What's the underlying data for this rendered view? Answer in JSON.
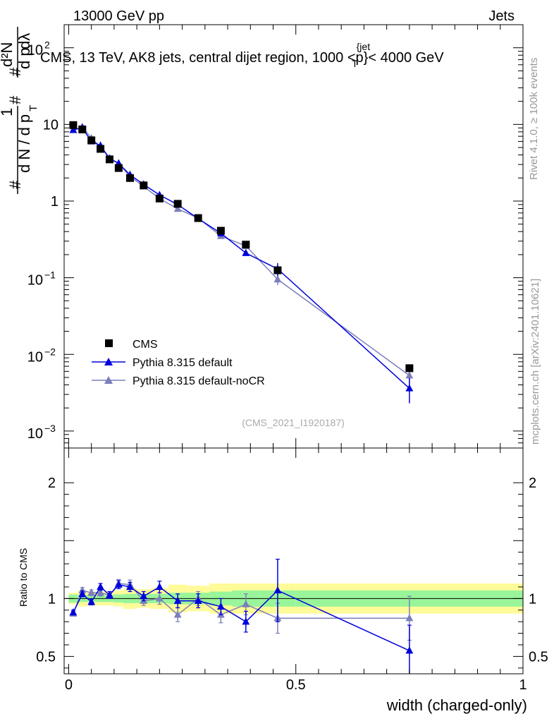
{
  "header": {
    "left": "13000 GeV pp",
    "right": "Jets"
  },
  "side_labels": {
    "rivet": "Rivet 4.1.0, ≥ 100k events",
    "mcplots": "mcplots.cern.ch [arXiv:2401.10621]"
  },
  "chart_data": [
    {
      "type": "scatter",
      "panel": "main",
      "title": "CMS, 13 TeV, AK8 jets, central dijet region, 1000 <p_T^{jet}< 4000 GeV",
      "title_parts": {
        "a": "CMS, 13 TeV, AK8 jets, central dijet region, 1000 <p",
        "sup": "{jet",
        "sub": "T",
        "b": "}< 4000 GeV"
      },
      "ylabel": "1/(dN/dpT) d²N/(dpT dλ)",
      "ylabel_parts": {
        "hash": "#",
        "one": "1",
        "den": "d N / d p",
        "T": "T",
        "num": "d²N",
        "dpdl": "d p",
        "dl": "dλ"
      },
      "yscale": "log",
      "ylim": [
        0.0006,
        200
      ],
      "xlim": [
        -0.01,
        1.0
      ],
      "y_ticks": [
        {
          "value": 0.001,
          "base": "10",
          "exp": "−3"
        },
        {
          "value": 0.01,
          "base": "10",
          "exp": "−2"
        },
        {
          "value": 0.1,
          "base": "10",
          "exp": "−1"
        },
        {
          "value": 1,
          "label": "1"
        },
        {
          "value": 10,
          "label": "10"
        },
        {
          "value": 100,
          "base": "10",
          "exp": "2"
        }
      ],
      "watermark": "(CMS_2021_I1920187)",
      "legend_position": "bottom-left",
      "series": [
        {
          "name": "CMS",
          "color": "#000000",
          "marker": "square",
          "x": [
            0.01,
            0.03,
            0.05,
            0.07,
            0.09,
            0.11,
            0.135,
            0.165,
            0.2,
            0.24,
            0.285,
            0.335,
            0.39,
            0.46,
            0.75
          ],
          "y": [
            9.8,
            8.6,
            6.2,
            4.8,
            3.5,
            2.7,
            2.0,
            1.6,
            1.08,
            0.92,
            0.6,
            0.41,
            0.27,
            0.125,
            0.0066
          ]
        },
        {
          "name": "Pythia 8.315 default",
          "color": "#0000dd",
          "marker": "triangle",
          "x": [
            0.01,
            0.03,
            0.05,
            0.07,
            0.09,
            0.11,
            0.135,
            0.165,
            0.2,
            0.24,
            0.285,
            0.335,
            0.39,
            0.46,
            0.75
          ],
          "y": [
            8.5,
            9.0,
            6.0,
            5.3,
            3.6,
            3.1,
            2.2,
            1.65,
            1.2,
            0.9,
            0.59,
            0.38,
            0.21,
            0.13,
            0.0036
          ],
          "yerr": [
            0.15,
            0.15,
            0.12,
            0.1,
            0.08,
            0.06,
            0.05,
            0.04,
            0.03,
            0.02,
            0.015,
            0.012,
            0.012,
            0.025,
            0.0013
          ]
        },
        {
          "name": "Pythia 8.315 default-noCR",
          "color": "#7b7fba",
          "marker": "triangle",
          "x": [
            0.01,
            0.03,
            0.05,
            0.07,
            0.09,
            0.11,
            0.135,
            0.165,
            0.2,
            0.24,
            0.285,
            0.335,
            0.39,
            0.46,
            0.75
          ],
          "y": [
            8.4,
            9.3,
            6.6,
            5.1,
            3.6,
            3.1,
            2.1,
            1.55,
            1.08,
            0.79,
            0.6,
            0.35,
            0.26,
            0.095,
            0.0053
          ],
          "yerr": [
            0.15,
            0.15,
            0.12,
            0.1,
            0.08,
            0.06,
            0.05,
            0.04,
            0.03,
            0.02,
            0.015,
            0.012,
            0.012,
            0.015,
            0.0012
          ]
        }
      ]
    },
    {
      "type": "scatter",
      "panel": "ratio",
      "xlabel": "width (charged-only)",
      "ylabel": "Ratio to CMS",
      "ylim": [
        0.35,
        2.3
      ],
      "xlim": [
        -0.01,
        1.0
      ],
      "x_ticks": [
        {
          "value": 0,
          "label": "0"
        },
        {
          "value": 0.5,
          "label": "0.5"
        },
        {
          "value": 1,
          "label": "1"
        }
      ],
      "y_ticks": [
        {
          "value": 0.5,
          "label": "0.5"
        },
        {
          "value": 1,
          "label": "1"
        },
        {
          "value": 2,
          "label": "2"
        }
      ],
      "bands": {
        "edges": [
          0,
          0.02,
          0.04,
          0.06,
          0.08,
          0.1,
          0.12,
          0.15,
          0.18,
          0.22,
          0.26,
          0.31,
          0.36,
          0.42,
          0.5,
          1.0
        ],
        "green": [
          0.035,
          0.03,
          0.03,
          0.03,
          0.03,
          0.035,
          0.04,
          0.04,
          0.04,
          0.05,
          0.05,
          0.06,
          0.07,
          0.07,
          0.07
        ],
        "yellow": [
          0.05,
          0.07,
          0.06,
          0.06,
          0.06,
          0.07,
          0.09,
          0.08,
          0.09,
          0.12,
          0.11,
          0.13,
          0.13,
          0.13,
          0.13
        ],
        "green_color": "#99f599",
        "yellow_color": "#fffb99"
      },
      "series": [
        {
          "name": "Pythia 8.315 default",
          "color": "#0000dd",
          "x": [
            0.01,
            0.03,
            0.05,
            0.07,
            0.09,
            0.11,
            0.135,
            0.165,
            0.2,
            0.24,
            0.285,
            0.335,
            0.39,
            0.46,
            0.75
          ],
          "y": [
            0.88,
            1.04,
            0.97,
            1.1,
            1.03,
            1.12,
            1.1,
            1.02,
            1.1,
            0.98,
            0.98,
            0.93,
            0.8,
            1.07,
            0.55
          ],
          "yerr": [
            0.02,
            0.025,
            0.025,
            0.03,
            0.03,
            0.035,
            0.04,
            0.04,
            0.05,
            0.06,
            0.06,
            0.07,
            0.09,
            0.27,
            0.22
          ]
        },
        {
          "name": "Pythia 8.315 default-noCR",
          "color": "#7b7fba",
          "x": [
            0.01,
            0.03,
            0.05,
            0.07,
            0.09,
            0.11,
            0.135,
            0.165,
            0.2,
            0.24,
            0.285,
            0.335,
            0.39,
            0.46,
            0.75
          ],
          "y": [
            0.87,
            1.07,
            1.05,
            1.05,
            1.03,
            1.13,
            1.12,
            0.98,
            1.0,
            0.86,
            1.0,
            0.86,
            0.95,
            0.83,
            0.83
          ],
          "yerr": [
            0.02,
            0.025,
            0.025,
            0.03,
            0.03,
            0.035,
            0.04,
            0.04,
            0.05,
            0.06,
            0.06,
            0.07,
            0.09,
            0.13,
            0.19
          ]
        }
      ]
    }
  ]
}
